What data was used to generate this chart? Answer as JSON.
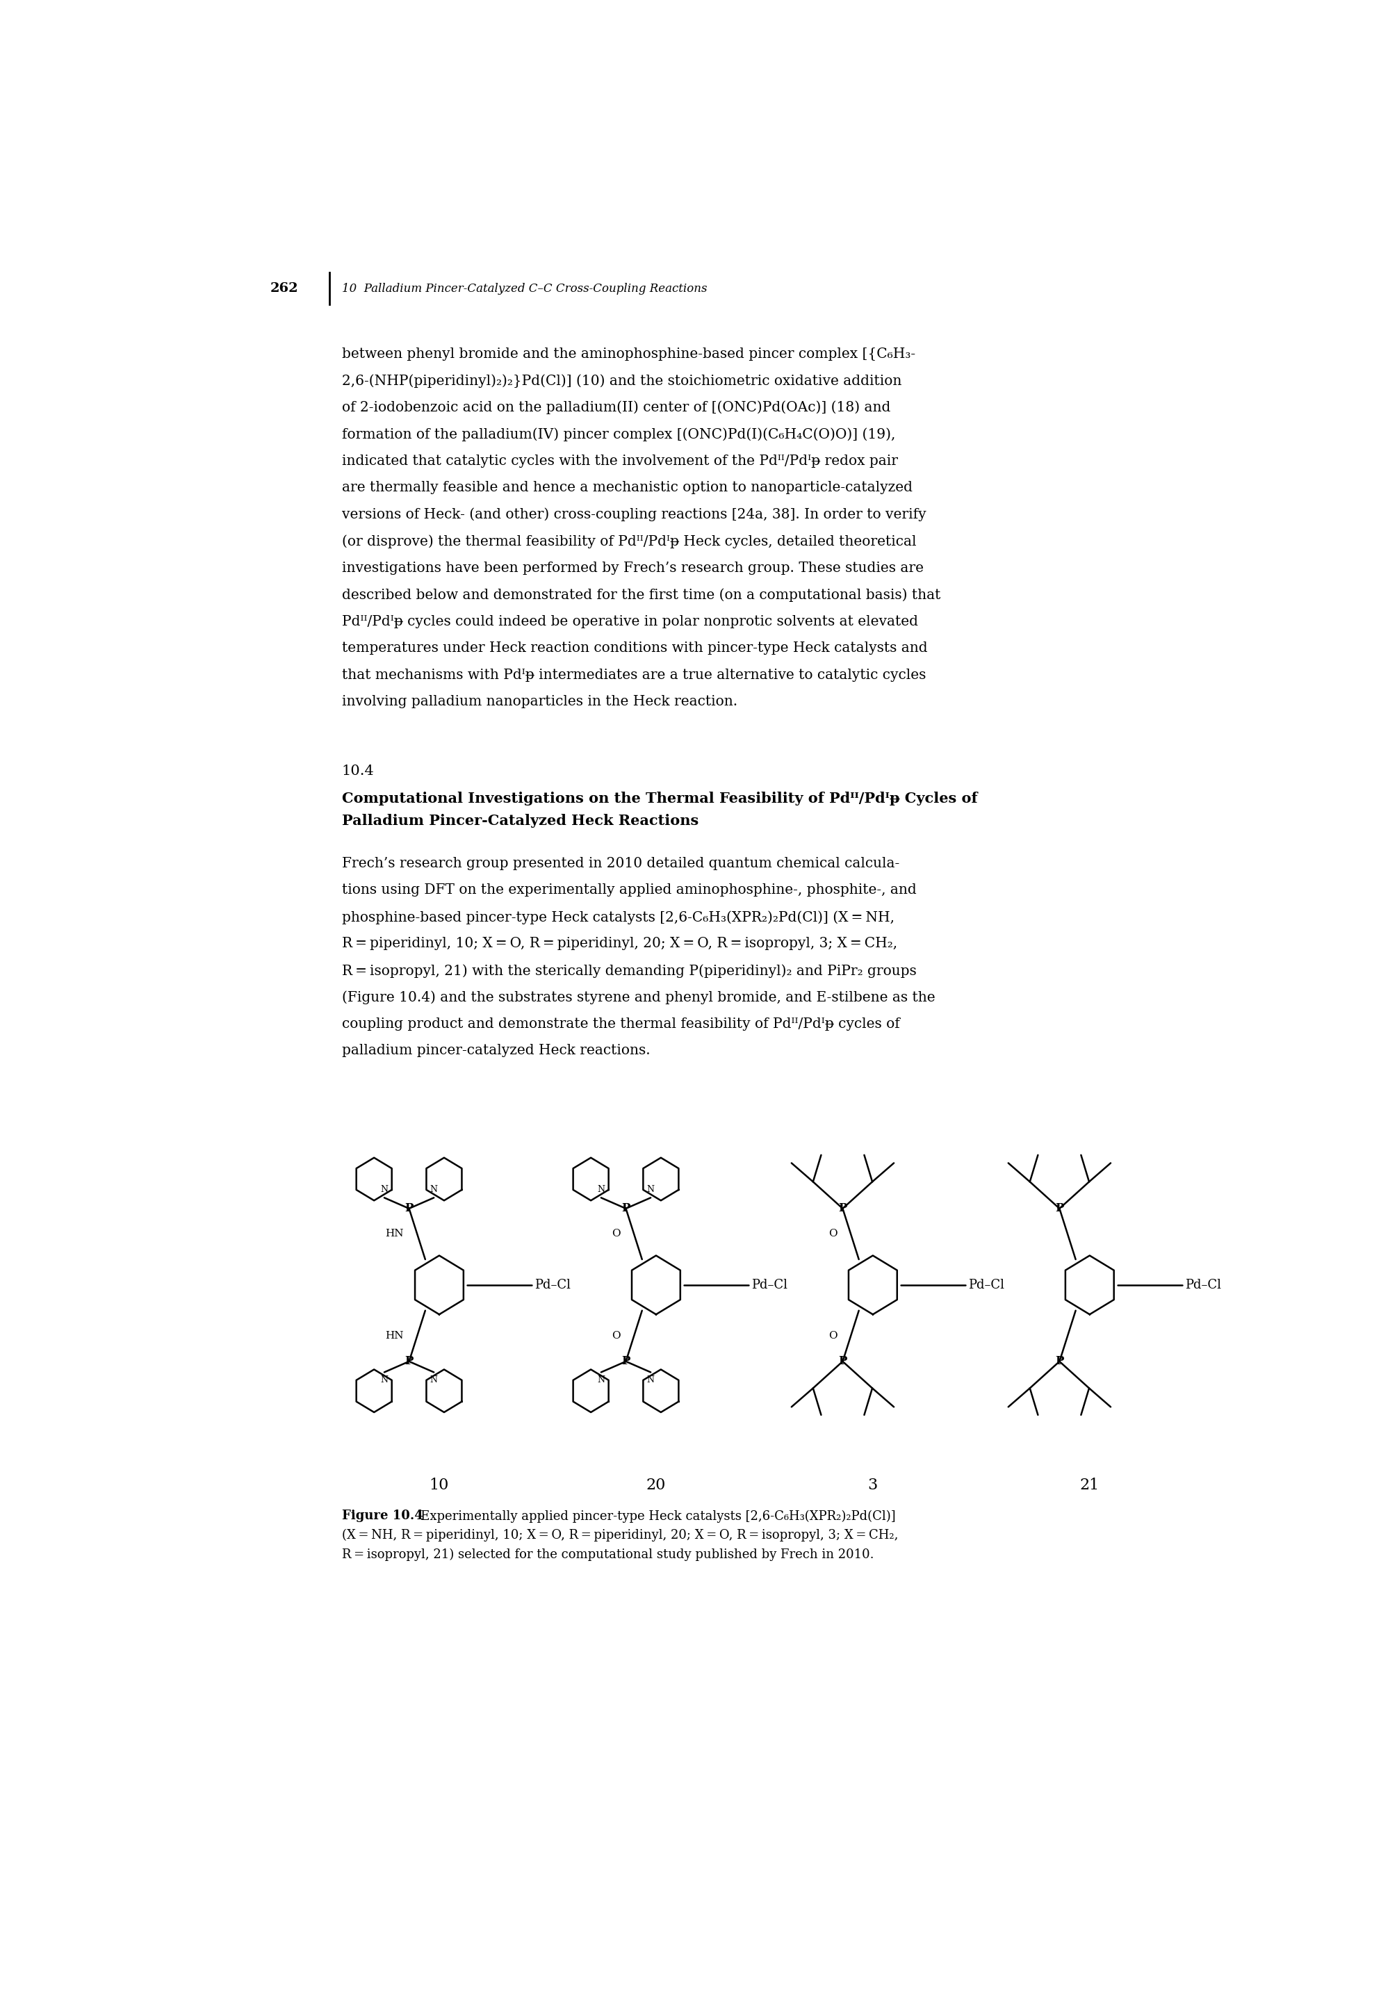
{
  "page_number": "262",
  "chapter_header": "10  Palladium Pincer-Catalyzed C–C Cross-Coupling Reactions",
  "background_color": "#ffffff",
  "text_color": "#000000",
  "body_paragraphs": [
    "between phenyl bromide and the aminophosphine-based pincer complex [{C₆H₃-",
    "2,6-(NHP(piperidinyl)₂)₂}Pd(Cl)] (10) and the stoichiometric oxidative addition",
    "of 2-iodobenzoic acid on the palladium(II) center of [(ONC)Pd(OAc)] (18) and",
    "formation of the palladium(IV) pincer complex [(ONC)Pd(I)(C₆H₄C(O)O)] (19),",
    "indicated that catalytic cycles with the involvement of the Pdᴵᴵ/Pdᴵᵽ redox pair",
    "are thermally feasible and hence a mechanistic option to nanoparticle-catalyzed",
    "versions of Heck- (and other) cross-coupling reactions [24a, 38]. In order to verify",
    "(or disprove) the thermal feasibility of Pdᴵᴵ/Pdᴵᵽ Heck cycles, detailed theoretical",
    "investigations have been performed by Frech’s research group. These studies are",
    "described below and demonstrated for the first time (on a computational basis) that",
    "Pdᴵᴵ/Pdᴵᵽ cycles could indeed be operative in polar nonprotic solvents at elevated",
    "temperatures under Heck reaction conditions with pincer-type Heck catalysts and",
    "that mechanisms with Pdᴵᵽ intermediates are a true alternative to catalytic cycles",
    "involving palladium nanoparticles in the Heck reaction."
  ],
  "section_number": "10.4",
  "section_title_line1": "Computational Investigations on the Thermal Feasibility of Pdᴵᴵ/Pdᴵᵽ Cycles of",
  "section_title_line2": "Palladium Pincer-Catalyzed Heck Reactions",
  "section_body": [
    "Frech’s research group presented in 2010 detailed quantum chemical calcula-",
    "tions using DFT on the experimentally applied aminophosphine-, phosphite-, and",
    "phosphine-based pincer-type Heck catalysts [2,6-C₆H₃(XPR₂)₂Pd(Cl)] (X = NH,",
    "R = piperidinyl, 10; X = O, R = piperidinyl, 20; X = O, R = isopropyl, 3; X = CH₂,",
    "R = isopropyl, 21) with the sterically demanding P(piperidinyl)₂ and PiPr₂ groups",
    "(Figure 10.4) and the substrates styrene and phenyl bromide, and E-stilbene as the",
    "coupling product and demonstrate the thermal feasibility of Pdᴵᴵ/Pdᴵᵽ cycles of",
    "palladium pincer-catalyzed Heck reactions."
  ],
  "figure_caption_bold": "Figure 10.4",
  "figure_caption_rest": "   Experimentally applied pincer-type Heck catalysts [2,6-C₆H₃(XPR₂)₂Pd(Cl)]",
  "figure_caption_line2": "(X = NH, R = piperidinyl, 10; X = O, R = piperidinyl, 20; X = O, R = isopropyl, 3; X = CH₂,",
  "figure_caption_line3": "R = isopropyl, 21) selected for the computational study published by Frech in 2010.",
  "compound_labels": [
    "10",
    "20",
    "3",
    "21"
  ]
}
